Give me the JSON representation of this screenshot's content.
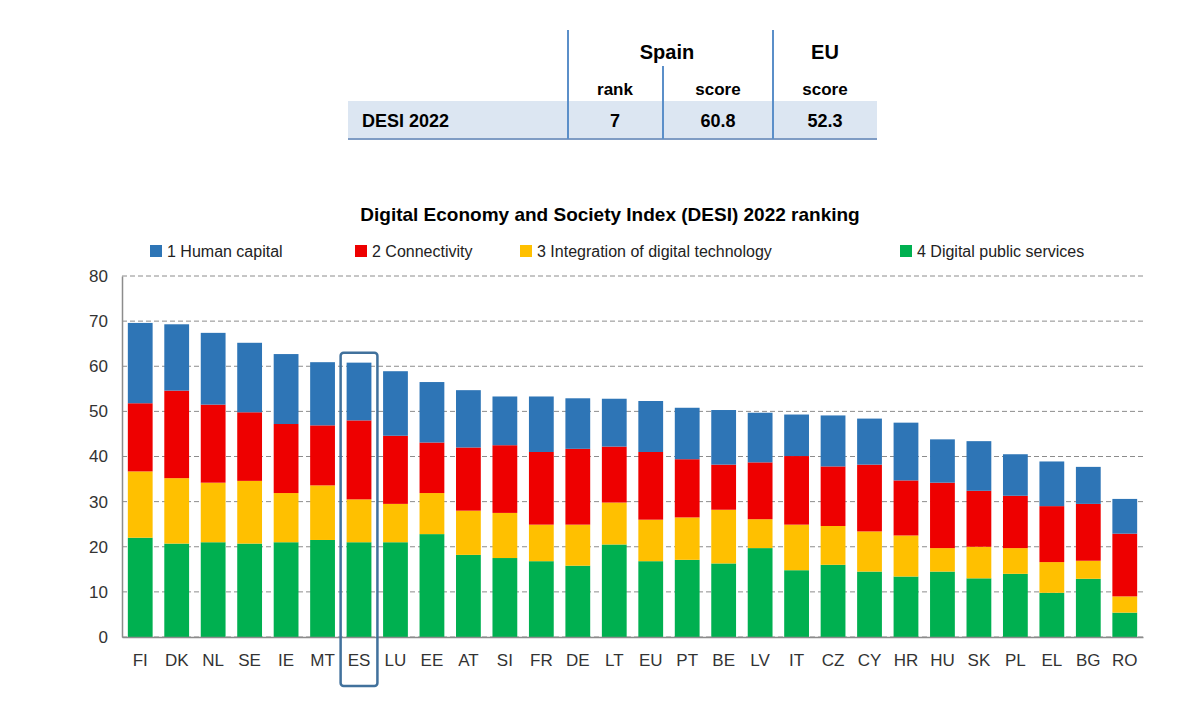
{
  "table": {
    "groups": [
      "Spain",
      "EU"
    ],
    "headers": [
      "rank",
      "score",
      "score"
    ],
    "row_label": "DESI 2022",
    "row": [
      7,
      60.8,
      52.3
    ]
  },
  "chart_data": {
    "type": "bar",
    "title": "Digital Economy and Society Index (DESI) 2022 ranking",
    "categories": [
      "FI",
      "DK",
      "NL",
      "SE",
      "IE",
      "MT",
      "ES",
      "LU",
      "EE",
      "AT",
      "SI",
      "FR",
      "DE",
      "LT",
      "EU",
      "PT",
      "BE",
      "LV",
      "IT",
      "CZ",
      "CY",
      "HR",
      "HU",
      "SK",
      "PL",
      "EL",
      "BG",
      "RO"
    ],
    "series": [
      {
        "name": "1 Human capital",
        "color": "#2e75b6",
        "values": [
          17.8,
          14.7,
          15.9,
          15.4,
          15.5,
          14.0,
          12.8,
          14.3,
          13.4,
          12.7,
          10.8,
          12.3,
          11.2,
          10.6,
          11.3,
          11.4,
          12.1,
          11.0,
          9.2,
          11.3,
          10.2,
          12.8,
          9.6,
          11.0,
          9.2,
          9.9,
          8.2,
          7.7
        ]
      },
      {
        "name": "2 Connectivity",
        "color": "#ee0000",
        "values": [
          15.1,
          19.4,
          17.3,
          15.2,
          15.3,
          13.3,
          17.5,
          15.1,
          11.2,
          14.0,
          15.0,
          16.1,
          16.8,
          12.4,
          15.0,
          12.9,
          10.0,
          12.6,
          15.2,
          13.2,
          14.8,
          12.2,
          14.5,
          12.4,
          11.6,
          12.4,
          12.6,
          13.9
        ]
      },
      {
        "name": "3 Integration of digital technology",
        "color": "#ffc000",
        "values": [
          14.7,
          14.5,
          13.2,
          13.9,
          10.9,
          12.1,
          9.5,
          8.5,
          9.1,
          9.8,
          10.0,
          8.1,
          9.1,
          9.3,
          9.2,
          9.4,
          11.9,
          6.4,
          10.1,
          8.6,
          8.9,
          9.1,
          5.2,
          7.0,
          5.7,
          6.8,
          4.0,
          3.6
        ]
      },
      {
        "name": "4 Digital public services",
        "color": "#00b050",
        "values": [
          22.0,
          20.7,
          21.0,
          20.7,
          21.0,
          21.5,
          21.0,
          21.0,
          22.8,
          18.2,
          17.5,
          16.8,
          15.8,
          20.5,
          16.8,
          17.1,
          16.3,
          19.7,
          14.8,
          16.0,
          14.5,
          13.4,
          14.5,
          13.0,
          14.0,
          9.8,
          12.9,
          5.4
        ]
      }
    ],
    "stacked": true,
    "ylim": [
      0,
      80
    ],
    "yticks": [
      0,
      10,
      20,
      30,
      40,
      50,
      60,
      70,
      80
    ],
    "grid": true,
    "legend": "top"
  }
}
